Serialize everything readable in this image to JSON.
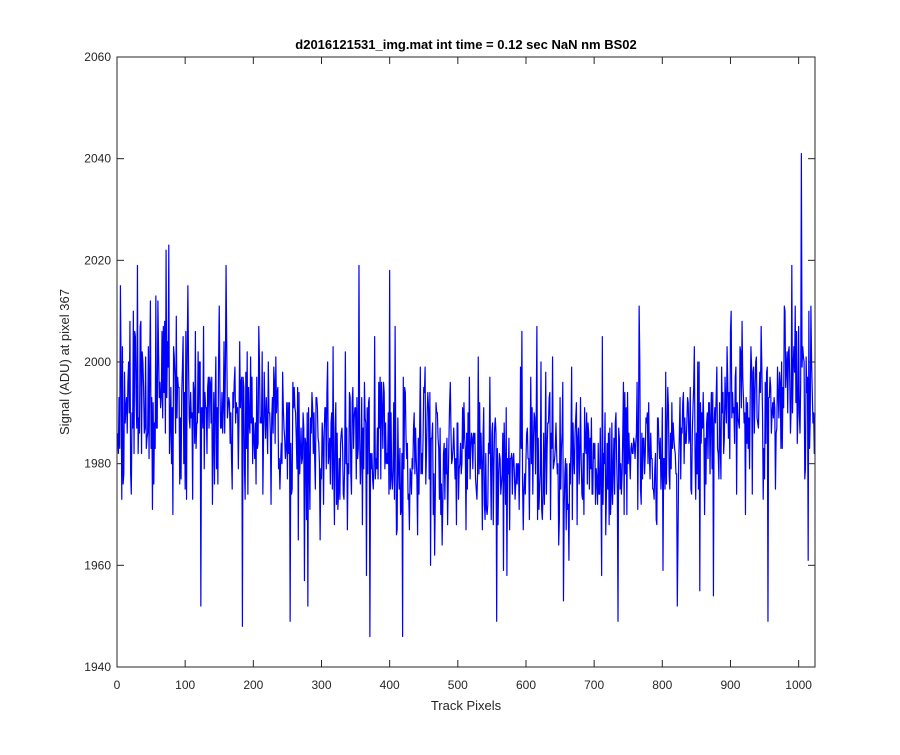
{
  "chart_data": {
    "type": "line",
    "title": "d2016121531_img.mat int time = 0.12 sec  NaN nm BS02",
    "xlabel": "Track Pixels",
    "ylabel": "Signal (ADU) at pixel 367",
    "xlim": [
      0,
      1024
    ],
    "ylim": [
      1940,
      2060
    ],
    "xticks": [
      0,
      100,
      200,
      300,
      400,
      500,
      600,
      700,
      800,
      900,
      1000
    ],
    "yticks": [
      1940,
      1960,
      1980,
      2000,
      2020,
      2040,
      2060
    ],
    "grid": false,
    "legend": "none",
    "line_color": "#0000ff",
    "series": [
      {
        "x_start": 1,
        "x_step": 1,
        "envelope_x": [
          1,
          50,
          100,
          150,
          200,
          250,
          300,
          350,
          400,
          450,
          500,
          550,
          600,
          650,
          700,
          750,
          800,
          850,
          900,
          950,
          1000,
          1024
        ],
        "envelope_mean": [
          1991,
          1994,
          1993,
          1991,
          1988,
          1986,
          1985,
          1985,
          1984,
          1983,
          1982,
          1981,
          1981,
          1981,
          1982,
          1983,
          1984,
          1986,
          1990,
          1992,
          1994,
          1992
        ],
        "noise_sd": 8.5,
        "min": 1946,
        "max": 2041,
        "spikes": [
          {
            "x": 5,
            "y": 2015
          },
          {
            "x": 7,
            "y": 1973
          },
          {
            "x": 30,
            "y": 2019
          },
          {
            "x": 52,
            "y": 1971
          },
          {
            "x": 72,
            "y": 2022
          },
          {
            "x": 76,
            "y": 2023
          },
          {
            "x": 82,
            "y": 1970
          },
          {
            "x": 123,
            "y": 1952
          },
          {
            "x": 140,
            "y": 1972
          },
          {
            "x": 160,
            "y": 2019
          },
          {
            "x": 184,
            "y": 1948
          },
          {
            "x": 254,
            "y": 1949
          },
          {
            "x": 275,
            "y": 1957
          },
          {
            "x": 280,
            "y": 1952
          },
          {
            "x": 355,
            "y": 2019
          },
          {
            "x": 366,
            "y": 1958
          },
          {
            "x": 371,
            "y": 1946
          },
          {
            "x": 400,
            "y": 2018
          },
          {
            "x": 419,
            "y": 1946
          },
          {
            "x": 460,
            "y": 1960
          },
          {
            "x": 557,
            "y": 1949
          },
          {
            "x": 572,
            "y": 1958
          },
          {
            "x": 594,
            "y": 2006
          },
          {
            "x": 655,
            "y": 1953
          },
          {
            "x": 735,
            "y": 1949
          },
          {
            "x": 822,
            "y": 1952
          },
          {
            "x": 855,
            "y": 1955
          },
          {
            "x": 875,
            "y": 1954
          },
          {
            "x": 955,
            "y": 1949
          },
          {
            "x": 1004,
            "y": 2041
          },
          {
            "x": 1014,
            "y": 1961
          }
        ]
      }
    ]
  }
}
